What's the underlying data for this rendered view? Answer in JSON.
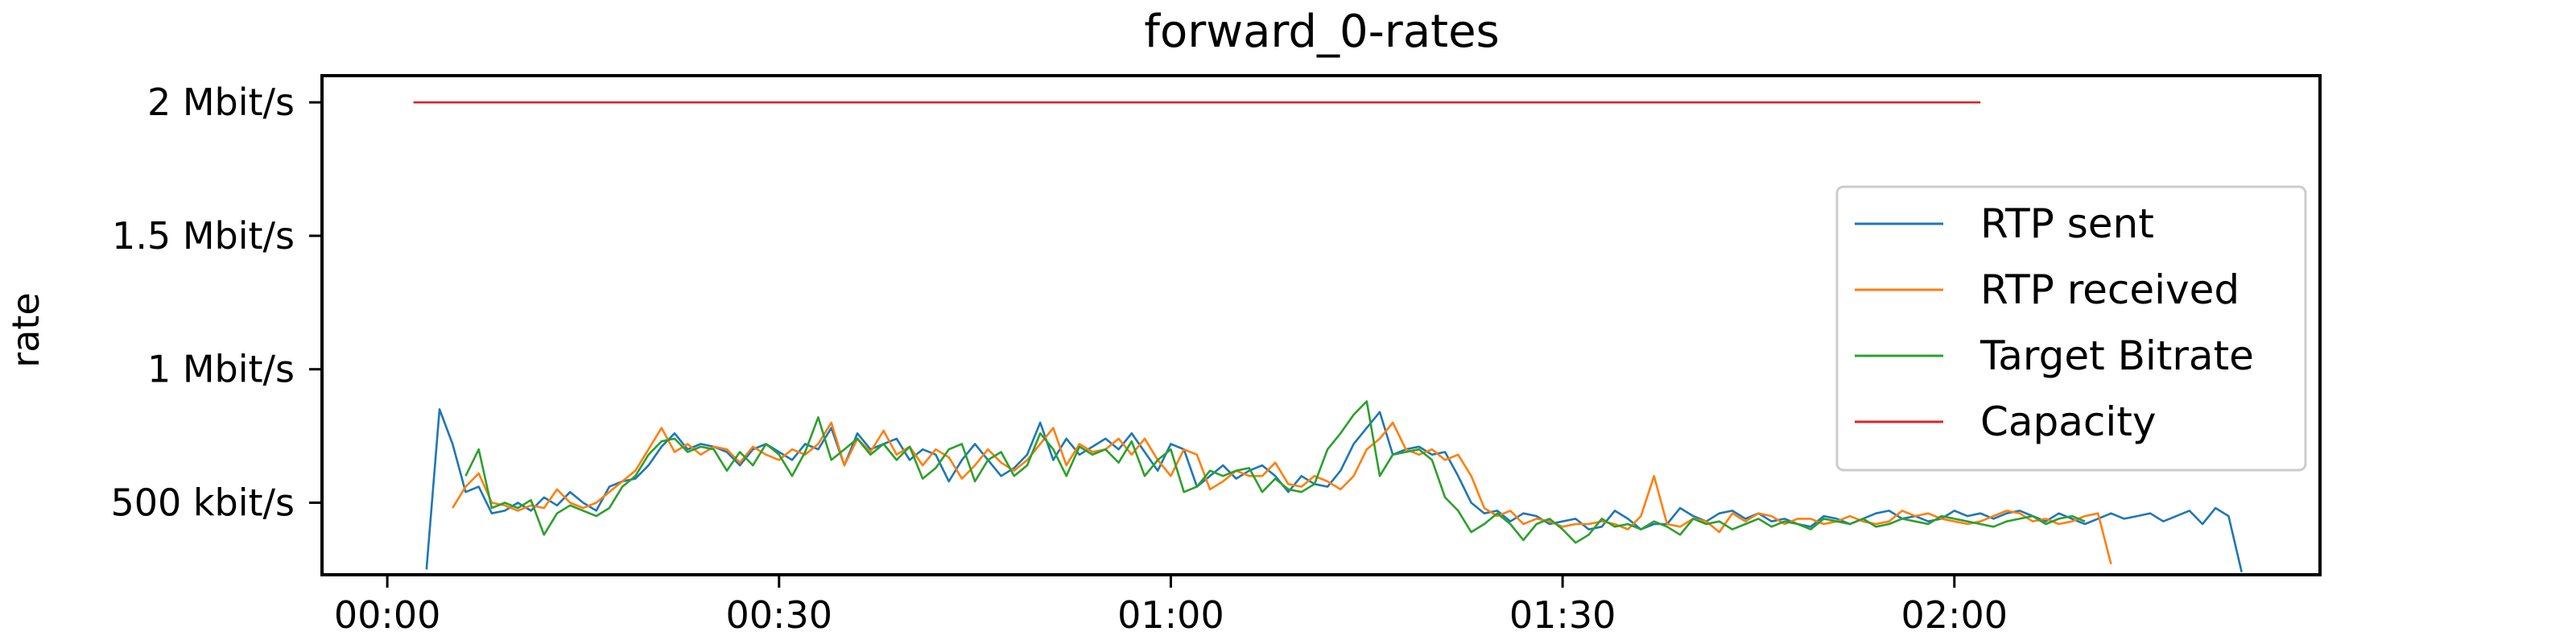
{
  "chart_data": {
    "type": "line",
    "title": "forward_0-rates",
    "xlabel": "",
    "ylabel": "rate",
    "x_unit": "seconds",
    "xlim": [
      -5,
      148
    ],
    "ylim": [
      230000,
      2100000
    ],
    "x_ticks": [
      {
        "value": 0,
        "label": "00:00"
      },
      {
        "value": 30,
        "label": "00:30"
      },
      {
        "value": 60,
        "label": "01:00"
      },
      {
        "value": 90,
        "label": "01:30"
      },
      {
        "value": 120,
        "label": "02:00"
      }
    ],
    "y_ticks": [
      {
        "value": 500000,
        "label": "500 kbit/s"
      },
      {
        "value": 1000000,
        "label": "1 Mbit/s"
      },
      {
        "value": 1500000,
        "label": "1.5 Mbit/s"
      },
      {
        "value": 2000000,
        "label": "2 Mbit/s"
      }
    ],
    "grid": false,
    "legend_position": "right",
    "series": [
      {
        "name": "RTP sent",
        "color": "#1f77b4",
        "x": [
          3,
          4,
          5,
          6,
          7,
          8,
          9,
          10,
          11,
          12,
          13,
          14,
          15,
          16,
          17,
          18,
          19,
          20,
          21,
          22,
          23,
          24,
          25,
          26,
          27,
          28,
          29,
          30,
          31,
          32,
          33,
          34,
          35,
          36,
          37,
          38,
          39,
          40,
          41,
          42,
          43,
          44,
          45,
          46,
          47,
          48,
          49,
          50,
          51,
          52,
          53,
          54,
          55,
          56,
          57,
          58,
          59,
          60,
          61,
          62,
          63,
          64,
          65,
          66,
          67,
          68,
          69,
          70,
          71,
          72,
          73,
          74,
          75,
          76,
          77,
          78,
          79,
          80,
          81,
          82,
          83,
          84,
          85,
          86,
          87,
          88,
          89,
          90,
          91,
          92,
          93,
          94,
          95,
          96,
          97,
          98,
          99,
          100,
          101,
          102,
          103,
          104,
          105,
          106,
          107,
          108,
          109,
          110,
          111,
          112,
          113,
          114,
          115,
          116,
          117,
          118,
          119,
          120,
          121,
          122,
          123,
          124,
          125,
          126,
          127,
          128,
          129,
          130,
          131,
          132,
          133,
          134,
          135,
          136,
          137,
          138,
          139,
          140,
          141,
          142
        ],
        "y": [
          250000,
          850000,
          720000,
          540000,
          560000,
          460000,
          470000,
          500000,
          470000,
          520000,
          490000,
          540000,
          500000,
          470000,
          560000,
          580000,
          590000,
          640000,
          710000,
          760000,
          700000,
          720000,
          710000,
          690000,
          640000,
          700000,
          720000,
          690000,
          660000,
          720000,
          700000,
          780000,
          640000,
          760000,
          700000,
          720000,
          740000,
          660000,
          700000,
          680000,
          580000,
          660000,
          720000,
          660000,
          600000,
          630000,
          680000,
          800000,
          660000,
          740000,
          680000,
          710000,
          740000,
          700000,
          760000,
          690000,
          620000,
          720000,
          700000,
          560000,
          600000,
          640000,
          590000,
          620000,
          640000,
          600000,
          540000,
          600000,
          570000,
          560000,
          620000,
          720000,
          780000,
          840000,
          680000,
          700000,
          710000,
          680000,
          690000,
          600000,
          500000,
          460000,
          470000,
          430000,
          460000,
          450000,
          420000,
          430000,
          440000,
          400000,
          410000,
          470000,
          440000,
          400000,
          420000,
          420000,
          480000,
          450000,
          430000,
          460000,
          470000,
          440000,
          460000,
          430000,
          440000,
          420000,
          410000,
          450000,
          440000,
          420000,
          440000,
          460000,
          470000,
          440000,
          450000,
          430000,
          440000,
          470000,
          450000,
          460000,
          440000,
          460000,
          470000,
          450000,
          430000,
          460000,
          440000,
          420000,
          440000,
          460000,
          440000,
          450000,
          460000,
          430000,
          450000,
          470000,
          420000,
          480000,
          450000,
          240000
        ]
      },
      {
        "name": "RTP received",
        "color": "#ff7f0e",
        "x": [
          5,
          6,
          7,
          8,
          9,
          10,
          11,
          12,
          13,
          14,
          15,
          16,
          17,
          18,
          19,
          20,
          21,
          22,
          23,
          24,
          25,
          26,
          27,
          28,
          29,
          30,
          31,
          32,
          33,
          34,
          35,
          36,
          37,
          38,
          39,
          40,
          41,
          42,
          43,
          44,
          45,
          46,
          47,
          48,
          49,
          50,
          51,
          52,
          53,
          54,
          55,
          56,
          57,
          58,
          59,
          60,
          61,
          62,
          63,
          64,
          65,
          66,
          67,
          68,
          69,
          70,
          71,
          72,
          73,
          74,
          75,
          76,
          77,
          78,
          79,
          80,
          81,
          82,
          83,
          84,
          85,
          86,
          87,
          88,
          89,
          90,
          91,
          92,
          93,
          94,
          95,
          96,
          97,
          98,
          99,
          100,
          101,
          102,
          103,
          104,
          105,
          106,
          107,
          108,
          109,
          110,
          111,
          112,
          113,
          114,
          115,
          116,
          117,
          118,
          119,
          120,
          121,
          122,
          123,
          124,
          125,
          126,
          127,
          128,
          129,
          130,
          131,
          132
        ],
        "y": [
          480000,
          560000,
          610000,
          500000,
          490000,
          470000,
          490000,
          480000,
          550000,
          500000,
          480000,
          500000,
          540000,
          580000,
          620000,
          700000,
          780000,
          690000,
          720000,
          680000,
          710000,
          700000,
          650000,
          710000,
          680000,
          660000,
          700000,
          680000,
          720000,
          800000,
          640000,
          740000,
          690000,
          770000,
          680000,
          710000,
          640000,
          700000,
          670000,
          590000,
          640000,
          700000,
          650000,
          620000,
          660000,
          720000,
          780000,
          640000,
          720000,
          690000,
          700000,
          740000,
          680000,
          740000,
          660000,
          600000,
          700000,
          680000,
          550000,
          580000,
          620000,
          600000,
          600000,
          650000,
          570000,
          560000,
          600000,
          580000,
          550000,
          600000,
          700000,
          740000,
          800000,
          700000,
          680000,
          700000,
          660000,
          680000,
          600000,
          480000,
          450000,
          470000,
          420000,
          440000,
          430000,
          410000,
          420000,
          420000,
          430000,
          420000,
          400000,
          450000,
          600000,
          420000,
          410000,
          440000,
          430000,
          390000,
          460000,
          430000,
          460000,
          450000,
          420000,
          440000,
          440000,
          420000,
          430000,
          450000,
          430000,
          420000,
          430000,
          470000,
          450000,
          460000,
          440000,
          430000,
          420000,
          430000,
          450000,
          470000,
          460000,
          430000,
          440000,
          420000,
          430000,
          450000,
          460000,
          270000
        ]
      },
      {
        "name": "Target Bitrate",
        "color": "#2ca02c",
        "x": [
          6,
          7,
          8,
          9,
          10,
          11,
          12,
          13,
          14,
          15,
          16,
          17,
          18,
          19,
          20,
          21,
          22,
          23,
          24,
          25,
          26,
          27,
          28,
          29,
          30,
          31,
          32,
          33,
          34,
          35,
          36,
          37,
          38,
          39,
          40,
          41,
          42,
          43,
          44,
          45,
          46,
          47,
          48,
          49,
          50,
          51,
          52,
          53,
          54,
          55,
          56,
          57,
          58,
          59,
          60,
          61,
          62,
          63,
          64,
          65,
          66,
          67,
          68,
          69,
          70,
          71,
          72,
          73,
          74,
          75,
          76,
          77,
          78,
          79,
          80,
          81,
          82,
          83,
          84,
          85,
          86,
          87,
          88,
          89,
          90,
          91,
          92,
          93,
          94,
          95,
          96,
          97,
          98,
          99,
          100,
          101,
          102,
          103,
          104,
          105,
          106,
          107,
          108,
          109,
          110,
          111,
          112,
          113,
          114,
          115,
          116,
          117,
          118,
          119,
          120,
          121,
          122,
          123,
          124,
          125,
          126,
          127,
          128,
          129,
          130
        ],
        "y": [
          600000,
          700000,
          480000,
          500000,
          480000,
          510000,
          380000,
          460000,
          490000,
          470000,
          450000,
          480000,
          560000,
          600000,
          680000,
          730000,
          740000,
          690000,
          710000,
          700000,
          620000,
          690000,
          640000,
          720000,
          680000,
          600000,
          690000,
          820000,
          660000,
          700000,
          740000,
          680000,
          720000,
          660000,
          710000,
          590000,
          630000,
          700000,
          720000,
          580000,
          660000,
          690000,
          600000,
          640000,
          760000,
          700000,
          600000,
          710000,
          680000,
          700000,
          650000,
          730000,
          600000,
          660000,
          700000,
          540000,
          560000,
          620000,
          600000,
          620000,
          630000,
          540000,
          590000,
          550000,
          540000,
          570000,
          700000,
          760000,
          830000,
          880000,
          600000,
          680000,
          690000,
          700000,
          660000,
          520000,
          470000,
          390000,
          420000,
          460000,
          420000,
          360000,
          420000,
          440000,
          400000,
          350000,
          380000,
          440000,
          410000,
          420000,
          400000,
          430000,
          410000,
          380000,
          440000,
          420000,
          430000,
          400000,
          420000,
          440000,
          410000,
          430000,
          420000,
          400000,
          440000,
          430000,
          420000,
          440000,
          410000,
          420000,
          440000,
          430000,
          420000,
          450000,
          440000,
          430000,
          420000,
          410000,
          430000,
          440000,
          450000,
          420000,
          440000,
          450000,
          430000
        ]
      },
      {
        "name": "Capacity",
        "color": "#d62728",
        "x": [
          2,
          122
        ],
        "y": [
          2000000,
          2000000
        ]
      }
    ]
  }
}
